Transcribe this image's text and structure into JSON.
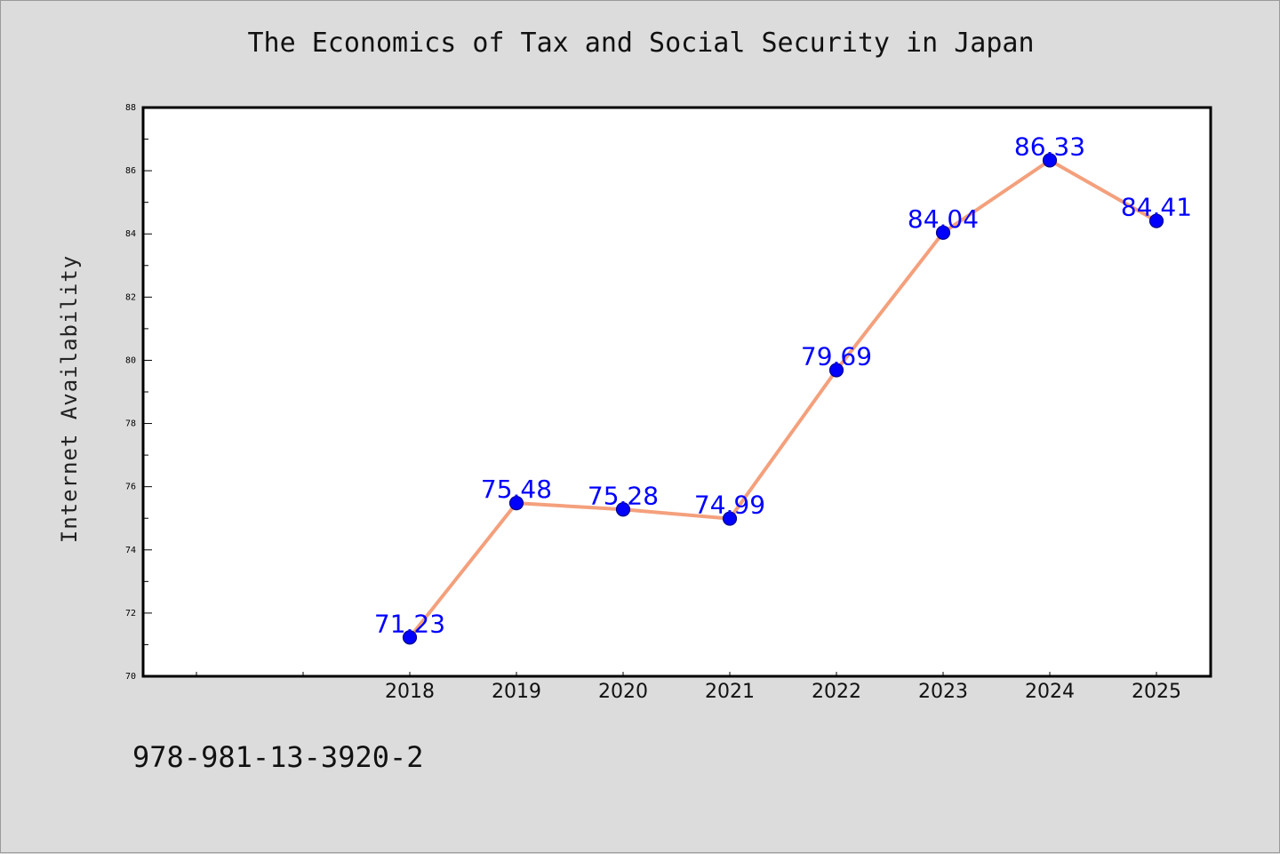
{
  "chart_data": {
    "type": "line",
    "title": "The Economics of Tax and Social Security in Japan",
    "xlabel": "",
    "ylabel": "Internet Availability",
    "categories": [
      "2018",
      "2019",
      "2020",
      "2021",
      "2022",
      "2023",
      "2024",
      "2025"
    ],
    "series": [
      {
        "values": [
          71.23,
          75.48,
          75.28,
          74.99,
          79.69,
          84.04,
          86.33,
          84.41
        ],
        "data_labels": [
          "71.23",
          "75.48",
          "75.28",
          "74.99",
          "79.69",
          "84.04",
          "86.33",
          "84.41"
        ]
      }
    ],
    "ylim": [
      70,
      88
    ],
    "yticks": [
      "70",
      "72",
      "74",
      "76",
      "78",
      "80",
      "82",
      "84",
      "86",
      "88"
    ],
    "grid": false,
    "colors": {
      "line": "#f4a07c",
      "marker": "#0000ff",
      "label": "#0000ff",
      "background": "#dcdcdc",
      "plot_background": "#ffffff"
    }
  },
  "footer": {
    "code": "978-981-13-3920-2"
  }
}
